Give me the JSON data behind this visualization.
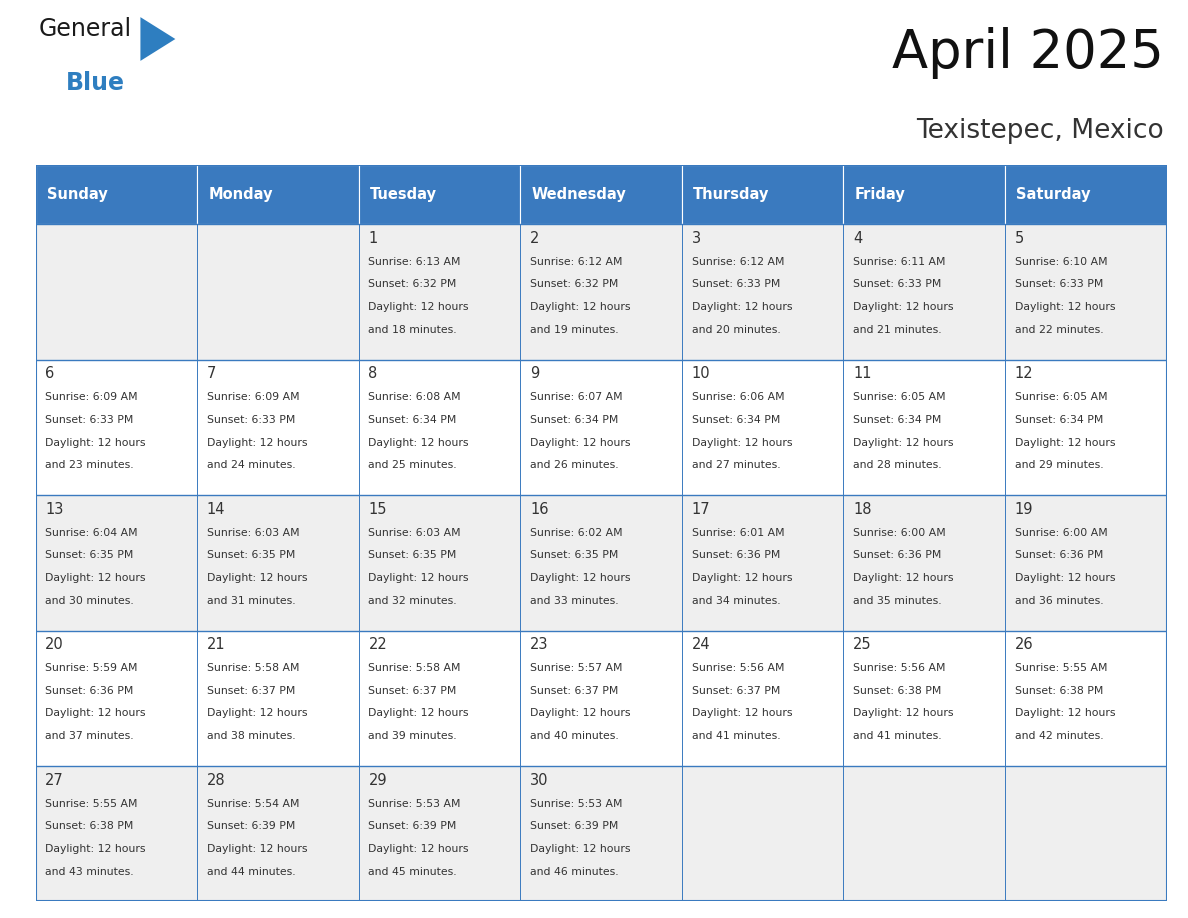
{
  "title": "April 2025",
  "subtitle": "Texistepec, Mexico",
  "header_color": "#3a7abf",
  "header_text_color": "#ffffff",
  "cell_bg_odd": "#efefef",
  "cell_bg_even": "#ffffff",
  "border_color": "#3a7abf",
  "text_color": "#333333",
  "days_of_week": [
    "Sunday",
    "Monday",
    "Tuesday",
    "Wednesday",
    "Thursday",
    "Friday",
    "Saturday"
  ],
  "weeks": [
    [
      {
        "day": "",
        "info": ""
      },
      {
        "day": "",
        "info": ""
      },
      {
        "day": "1",
        "info": "Sunrise: 6:13 AM\nSunset: 6:32 PM\nDaylight: 12 hours\nand 18 minutes."
      },
      {
        "day": "2",
        "info": "Sunrise: 6:12 AM\nSunset: 6:32 PM\nDaylight: 12 hours\nand 19 minutes."
      },
      {
        "day": "3",
        "info": "Sunrise: 6:12 AM\nSunset: 6:33 PM\nDaylight: 12 hours\nand 20 minutes."
      },
      {
        "day": "4",
        "info": "Sunrise: 6:11 AM\nSunset: 6:33 PM\nDaylight: 12 hours\nand 21 minutes."
      },
      {
        "day": "5",
        "info": "Sunrise: 6:10 AM\nSunset: 6:33 PM\nDaylight: 12 hours\nand 22 minutes."
      }
    ],
    [
      {
        "day": "6",
        "info": "Sunrise: 6:09 AM\nSunset: 6:33 PM\nDaylight: 12 hours\nand 23 minutes."
      },
      {
        "day": "7",
        "info": "Sunrise: 6:09 AM\nSunset: 6:33 PM\nDaylight: 12 hours\nand 24 minutes."
      },
      {
        "day": "8",
        "info": "Sunrise: 6:08 AM\nSunset: 6:34 PM\nDaylight: 12 hours\nand 25 minutes."
      },
      {
        "day": "9",
        "info": "Sunrise: 6:07 AM\nSunset: 6:34 PM\nDaylight: 12 hours\nand 26 minutes."
      },
      {
        "day": "10",
        "info": "Sunrise: 6:06 AM\nSunset: 6:34 PM\nDaylight: 12 hours\nand 27 minutes."
      },
      {
        "day": "11",
        "info": "Sunrise: 6:05 AM\nSunset: 6:34 PM\nDaylight: 12 hours\nand 28 minutes."
      },
      {
        "day": "12",
        "info": "Sunrise: 6:05 AM\nSunset: 6:34 PM\nDaylight: 12 hours\nand 29 minutes."
      }
    ],
    [
      {
        "day": "13",
        "info": "Sunrise: 6:04 AM\nSunset: 6:35 PM\nDaylight: 12 hours\nand 30 minutes."
      },
      {
        "day": "14",
        "info": "Sunrise: 6:03 AM\nSunset: 6:35 PM\nDaylight: 12 hours\nand 31 minutes."
      },
      {
        "day": "15",
        "info": "Sunrise: 6:03 AM\nSunset: 6:35 PM\nDaylight: 12 hours\nand 32 minutes."
      },
      {
        "day": "16",
        "info": "Sunrise: 6:02 AM\nSunset: 6:35 PM\nDaylight: 12 hours\nand 33 minutes."
      },
      {
        "day": "17",
        "info": "Sunrise: 6:01 AM\nSunset: 6:36 PM\nDaylight: 12 hours\nand 34 minutes."
      },
      {
        "day": "18",
        "info": "Sunrise: 6:00 AM\nSunset: 6:36 PM\nDaylight: 12 hours\nand 35 minutes."
      },
      {
        "day": "19",
        "info": "Sunrise: 6:00 AM\nSunset: 6:36 PM\nDaylight: 12 hours\nand 36 minutes."
      }
    ],
    [
      {
        "day": "20",
        "info": "Sunrise: 5:59 AM\nSunset: 6:36 PM\nDaylight: 12 hours\nand 37 minutes."
      },
      {
        "day": "21",
        "info": "Sunrise: 5:58 AM\nSunset: 6:37 PM\nDaylight: 12 hours\nand 38 minutes."
      },
      {
        "day": "22",
        "info": "Sunrise: 5:58 AM\nSunset: 6:37 PM\nDaylight: 12 hours\nand 39 minutes."
      },
      {
        "day": "23",
        "info": "Sunrise: 5:57 AM\nSunset: 6:37 PM\nDaylight: 12 hours\nand 40 minutes."
      },
      {
        "day": "24",
        "info": "Sunrise: 5:56 AM\nSunset: 6:37 PM\nDaylight: 12 hours\nand 41 minutes."
      },
      {
        "day": "25",
        "info": "Sunrise: 5:56 AM\nSunset: 6:38 PM\nDaylight: 12 hours\nand 41 minutes."
      },
      {
        "day": "26",
        "info": "Sunrise: 5:55 AM\nSunset: 6:38 PM\nDaylight: 12 hours\nand 42 minutes."
      }
    ],
    [
      {
        "day": "27",
        "info": "Sunrise: 5:55 AM\nSunset: 6:38 PM\nDaylight: 12 hours\nand 43 minutes."
      },
      {
        "day": "28",
        "info": "Sunrise: 5:54 AM\nSunset: 6:39 PM\nDaylight: 12 hours\nand 44 minutes."
      },
      {
        "day": "29",
        "info": "Sunrise: 5:53 AM\nSunset: 6:39 PM\nDaylight: 12 hours\nand 45 minutes."
      },
      {
        "day": "30",
        "info": "Sunrise: 5:53 AM\nSunset: 6:39 PM\nDaylight: 12 hours\nand 46 minutes."
      },
      {
        "day": "",
        "info": ""
      },
      {
        "day": "",
        "info": ""
      },
      {
        "day": "",
        "info": ""
      }
    ]
  ],
  "logo_color_general": "#1a1a1a",
  "logo_color_blue": "#2e7ec0",
  "logo_triangle_color": "#2e7ec0"
}
